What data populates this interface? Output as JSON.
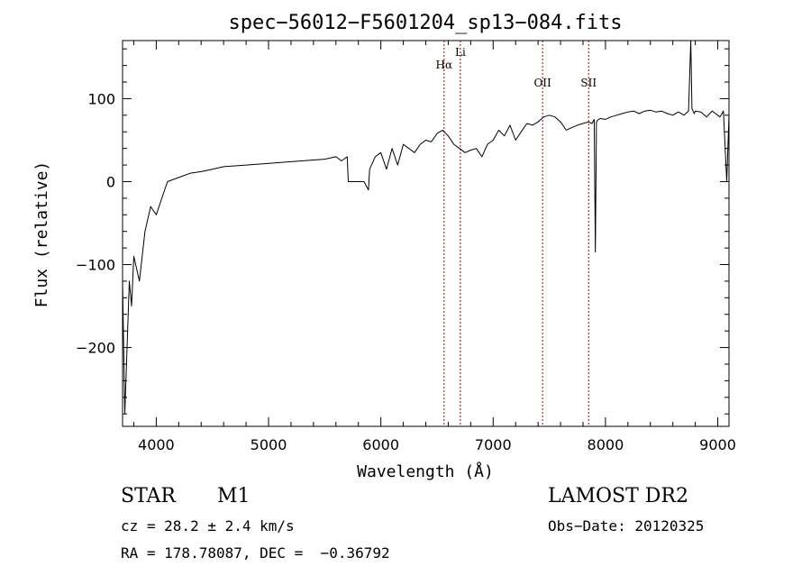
{
  "chart_data": {
    "type": "line",
    "title": "spec−56012−F5601204_sp13−084.fits",
    "xlabel": "Wavelength (Å)",
    "ylabel": "Flux (relative)",
    "xlim": [
      3700,
      9100
    ],
    "ylim": [
      -295,
      170
    ],
    "xticks": [
      4000,
      5000,
      6000,
      7000,
      8000,
      9000
    ],
    "yticks": [
      -200,
      -100,
      0,
      100
    ],
    "ytick_labels": [
      "−200",
      "−100",
      "0",
      "100"
    ],
    "grid": false,
    "series": [
      {
        "color": "#000000",
        "x": [
          3700,
          3720,
          3740,
          3760,
          3780,
          3800,
          3850,
          3900,
          3950,
          4000,
          4050,
          4100,
          4200,
          4300,
          4400,
          4500,
          4600,
          4800,
          5000,
          5200,
          5400,
          5500,
          5600,
          5650,
          5700,
          5710,
          5850,
          5870,
          5890,
          5900,
          5950,
          6000,
          6050,
          6100,
          6150,
          6200,
          6250,
          6300,
          6350,
          6400,
          6450,
          6500,
          6550,
          6600,
          6650,
          6700,
          6750,
          6800,
          6850,
          6900,
          6950,
          7000,
          7050,
          7100,
          7150,
          7200,
          7250,
          7300,
          7350,
          7400,
          7450,
          7500,
          7550,
          7600,
          7650,
          7700,
          7750,
          7800,
          7850,
          7880,
          7900,
          7910,
          7920,
          7930,
          7950,
          8000,
          8050,
          8100,
          8150,
          8200,
          8250,
          8300,
          8350,
          8400,
          8450,
          8500,
          8550,
          8600,
          8650,
          8700,
          8740,
          8760,
          8770,
          8790,
          8800,
          8850,
          8900,
          8950,
          9000,
          9020,
          9050,
          9080,
          9100
        ],
        "y": [
          -120,
          -280,
          -200,
          -120,
          -150,
          -90,
          -120,
          -60,
          -30,
          -40,
          -20,
          0,
          5,
          10,
          12,
          15,
          18,
          20,
          22,
          24,
          26,
          27,
          30,
          25,
          30,
          0,
          0,
          -5,
          -10,
          15,
          30,
          35,
          15,
          40,
          20,
          45,
          40,
          35,
          45,
          50,
          48,
          58,
          62,
          55,
          45,
          40,
          35,
          38,
          40,
          30,
          45,
          50,
          62,
          55,
          68,
          50,
          60,
          70,
          68,
          72,
          78,
          80,
          78,
          72,
          62,
          65,
          68,
          70,
          72,
          70,
          75,
          -85,
          72,
          74,
          76,
          75,
          78,
          80,
          82,
          84,
          85,
          82,
          85,
          86,
          84,
          85,
          82,
          80,
          84,
          80,
          85,
          170,
          88,
          82,
          85,
          84,
          78,
          85,
          80,
          78,
          85,
          0,
          80
        ]
      }
    ],
    "vlines": [
      {
        "x": 6563,
        "label": "Hα",
        "color": "#b00000"
      },
      {
        "x": 6708,
        "label": "Li",
        "color": "#b00000"
      },
      {
        "x": 7440,
        "label": "OII",
        "color": "#b00000"
      },
      {
        "x": 7850,
        "label": "SII",
        "color": "#b00000"
      }
    ]
  },
  "info": {
    "object_class": "STAR",
    "subclass": "M1",
    "survey": "LAMOST DR2",
    "cz": "cz = 28.2 ± 2.4 km/s",
    "obs_date": "Obs−Date: 20120325",
    "coords": "RA = 178.78087, DEC =  −0.36792"
  }
}
